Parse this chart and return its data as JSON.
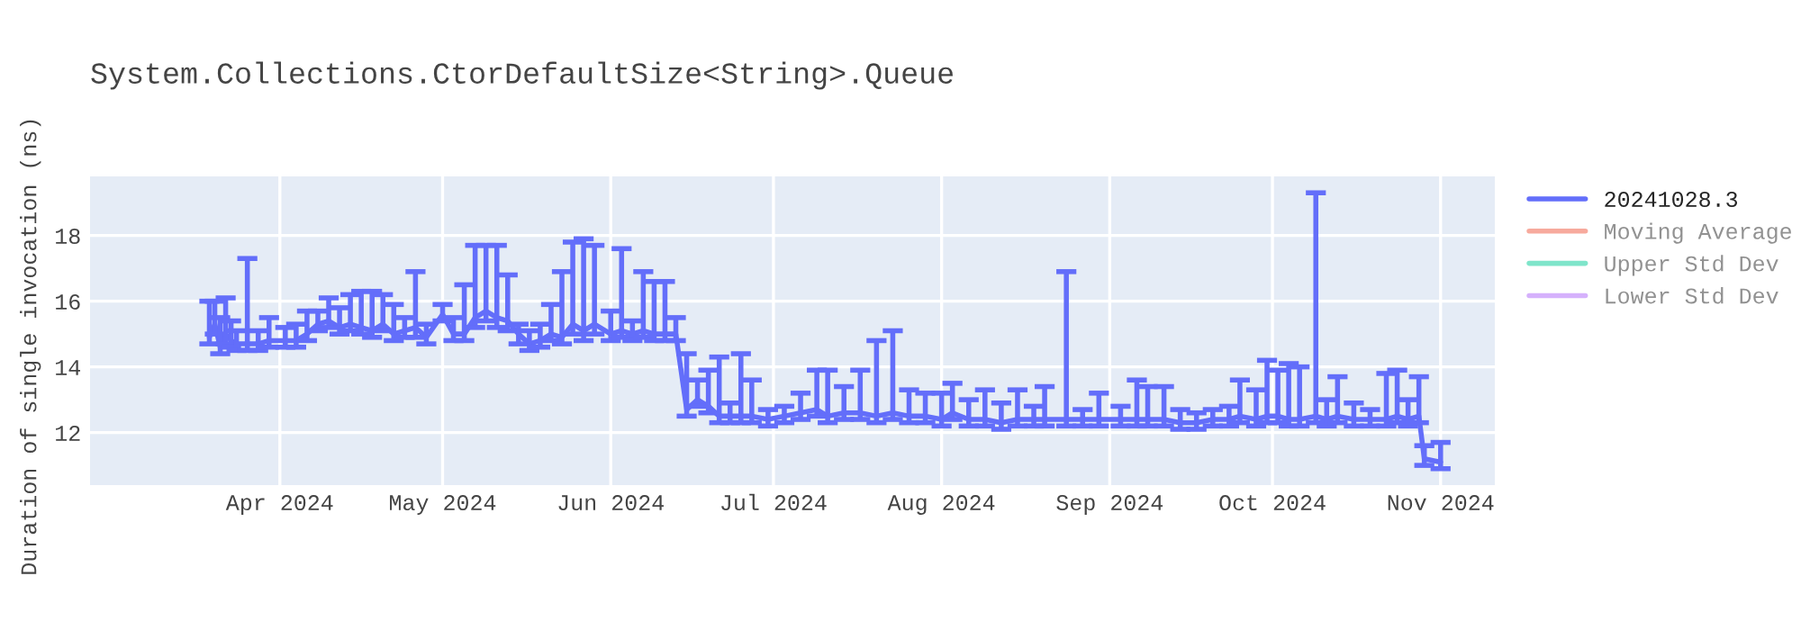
{
  "chart_data": {
    "type": "line",
    "title": "System.Collections.CtorDefaultSize<String>.Queue",
    "ylabel": "Duration of single invocation (ns)",
    "x": [
      "2024-03-19",
      "2024-03-20",
      "2024-03-21",
      "2024-03-22",
      "2024-03-23",
      "2024-03-24",
      "2024-03-26",
      "2024-03-28",
      "2024-03-30",
      "2024-04-02",
      "2024-04-04",
      "2024-04-06",
      "2024-04-08",
      "2024-04-10",
      "2024-04-12",
      "2024-04-14",
      "2024-04-16",
      "2024-04-18",
      "2024-04-20",
      "2024-04-22",
      "2024-04-24",
      "2024-04-26",
      "2024-04-28",
      "2024-05-01",
      "2024-05-03",
      "2024-05-05",
      "2024-05-07",
      "2024-05-09",
      "2024-05-11",
      "2024-05-13",
      "2024-05-15",
      "2024-05-17",
      "2024-05-19",
      "2024-05-21",
      "2024-05-23",
      "2024-05-25",
      "2024-05-27",
      "2024-05-29",
      "2024-06-01",
      "2024-06-03",
      "2024-06-05",
      "2024-06-07",
      "2024-06-09",
      "2024-06-11",
      "2024-06-13",
      "2024-06-15",
      "2024-06-17",
      "2024-06-19",
      "2024-06-21",
      "2024-06-23",
      "2024-06-25",
      "2024-06-27",
      "2024-06-30",
      "2024-07-03",
      "2024-07-06",
      "2024-07-09",
      "2024-07-11",
      "2024-07-14",
      "2024-07-17",
      "2024-07-20",
      "2024-07-23",
      "2024-07-26",
      "2024-07-29",
      "2024-08-01",
      "2024-08-03",
      "2024-08-06",
      "2024-08-09",
      "2024-08-12",
      "2024-08-15",
      "2024-08-18",
      "2024-08-20",
      "2024-08-24",
      "2024-08-27",
      "2024-08-30",
      "2024-09-03",
      "2024-09-06",
      "2024-09-08",
      "2024-09-11",
      "2024-09-14",
      "2024-09-17",
      "2024-09-20",
      "2024-09-23",
      "2024-09-25",
      "2024-09-28",
      "2024-09-30",
      "2024-10-02",
      "2024-10-04",
      "2024-10-06",
      "2024-10-09",
      "2024-10-11",
      "2024-10-13",
      "2024-10-16",
      "2024-10-19",
      "2024-10-22",
      "2024-10-24",
      "2024-10-26",
      "2024-10-28",
      "2024-10-29",
      "2024-11-01"
    ],
    "series": [
      {
        "name": "20241028.3",
        "color": "#636efa",
        "values": [
          14.9,
          15.3,
          14.6,
          15.0,
          14.8,
          14.7,
          14.7,
          14.7,
          14.8,
          14.8,
          14.8,
          15.0,
          15.3,
          15.4,
          15.2,
          15.3,
          15.2,
          15.1,
          15.3,
          15.0,
          15.1,
          15.2,
          14.9,
          15.6,
          15.0,
          15.0,
          15.5,
          15.7,
          15.5,
          15.4,
          15.0,
          14.7,
          14.8,
          15.0,
          14.9,
          15.3,
          15.1,
          15.3,
          15.0,
          15.1,
          15.0,
          15.1,
          15.0,
          15.0,
          15.0,
          12.7,
          13.0,
          12.8,
          12.5,
          12.5,
          12.5,
          12.5,
          12.4,
          12.5,
          12.6,
          12.7,
          12.5,
          12.6,
          12.6,
          12.5,
          12.6,
          12.5,
          12.5,
          12.4,
          12.6,
          12.4,
          12.4,
          12.3,
          12.4,
          12.4,
          12.4,
          12.4,
          12.4,
          12.4,
          12.4,
          12.4,
          12.4,
          12.4,
          12.3,
          12.3,
          12.4,
          12.4,
          12.5,
          12.4,
          12.5,
          12.5,
          12.4,
          12.4,
          12.5,
          12.4,
          12.5,
          12.4,
          12.4,
          12.4,
          12.5,
          12.4,
          12.5,
          11.2,
          11.1
        ],
        "errors": [
          [
            14.7,
            16.0
          ],
          [
            15.0,
            16.0
          ],
          [
            14.4,
            15.5
          ],
          [
            14.7,
            16.1
          ],
          [
            14.6,
            15.4
          ],
          [
            14.5,
            15.1
          ],
          [
            14.5,
            17.3
          ],
          [
            14.5,
            15.1
          ],
          [
            14.6,
            15.5
          ],
          [
            14.6,
            15.2
          ],
          [
            14.6,
            15.3
          ],
          [
            14.8,
            15.7
          ],
          [
            15.1,
            15.7
          ],
          [
            15.2,
            16.1
          ],
          [
            15.0,
            15.8
          ],
          [
            15.1,
            16.2
          ],
          [
            15.0,
            16.3
          ],
          [
            14.9,
            16.3
          ],
          [
            15.1,
            16.2
          ],
          [
            14.8,
            15.9
          ],
          [
            14.9,
            15.5
          ],
          [
            14.9,
            16.9
          ],
          [
            14.7,
            15.3
          ],
          [
            15.4,
            15.9
          ],
          [
            14.8,
            15.5
          ],
          [
            14.8,
            16.5
          ],
          [
            15.2,
            17.7
          ],
          [
            15.4,
            17.7
          ],
          [
            15.2,
            17.7
          ],
          [
            15.1,
            16.8
          ],
          [
            14.7,
            15.3
          ],
          [
            14.5,
            15.1
          ],
          [
            14.6,
            15.3
          ],
          [
            14.8,
            15.9
          ],
          [
            14.7,
            16.9
          ],
          [
            15.0,
            17.8
          ],
          [
            14.8,
            17.9
          ],
          [
            15.0,
            17.7
          ],
          [
            14.8,
            15.7
          ],
          [
            14.9,
            17.6
          ],
          [
            14.8,
            15.4
          ],
          [
            14.9,
            16.9
          ],
          [
            14.8,
            16.6
          ],
          [
            14.8,
            16.6
          ],
          [
            14.8,
            15.5
          ],
          [
            12.5,
            14.4
          ],
          [
            12.8,
            13.6
          ],
          [
            12.6,
            13.9
          ],
          [
            12.3,
            14.3
          ],
          [
            12.3,
            12.9
          ],
          [
            12.3,
            14.4
          ],
          [
            12.3,
            13.6
          ],
          [
            12.2,
            12.7
          ],
          [
            12.3,
            12.8
          ],
          [
            12.4,
            13.2
          ],
          [
            12.5,
            13.9
          ],
          [
            12.3,
            13.9
          ],
          [
            12.4,
            13.4
          ],
          [
            12.4,
            13.9
          ],
          [
            12.3,
            14.8
          ],
          [
            12.4,
            15.1
          ],
          [
            12.3,
            13.3
          ],
          [
            12.3,
            13.2
          ],
          [
            12.2,
            13.2
          ],
          [
            12.4,
            13.5
          ],
          [
            12.2,
            13.0
          ],
          [
            12.2,
            13.3
          ],
          [
            12.1,
            12.9
          ],
          [
            12.2,
            13.3
          ],
          [
            12.2,
            12.8
          ],
          [
            12.2,
            13.4
          ],
          [
            12.2,
            16.9
          ],
          [
            12.2,
            12.7
          ],
          [
            12.2,
            13.2
          ],
          [
            12.2,
            12.8
          ],
          [
            12.2,
            13.6
          ],
          [
            12.2,
            13.4
          ],
          [
            12.2,
            13.4
          ],
          [
            12.1,
            12.7
          ],
          [
            12.1,
            12.6
          ],
          [
            12.2,
            12.7
          ],
          [
            12.2,
            12.8
          ],
          [
            12.3,
            13.6
          ],
          [
            12.2,
            13.3
          ],
          [
            12.3,
            14.2
          ],
          [
            12.3,
            13.9
          ],
          [
            12.2,
            14.1
          ],
          [
            12.2,
            14.0
          ],
          [
            12.3,
            19.3
          ],
          [
            12.2,
            13.0
          ],
          [
            12.3,
            13.7
          ],
          [
            12.2,
            12.9
          ],
          [
            12.2,
            12.7
          ],
          [
            12.2,
            13.8
          ],
          [
            12.3,
            13.9
          ],
          [
            12.2,
            13.0
          ],
          [
            12.3,
            13.7
          ],
          [
            11.0,
            11.6
          ],
          [
            10.9,
            11.7
          ]
        ]
      },
      {
        "name": "Moving Average",
        "color": "#ef553b",
        "values": [
          null,
          null,
          null,
          null,
          null,
          null,
          null,
          null,
          null,
          null,
          null,
          null,
          null,
          null,
          null,
          null,
          null,
          null,
          null,
          null,
          null,
          null,
          null,
          null,
          null,
          null,
          null,
          null,
          null,
          null,
          null,
          null,
          null,
          null,
          null,
          null,
          null,
          null,
          null,
          null,
          null,
          null,
          null,
          null,
          null,
          null,
          null,
          null,
          null,
          null,
          null,
          null,
          null,
          null,
          null,
          null,
          null,
          null,
          null,
          null,
          null,
          null,
          null,
          null,
          null,
          null,
          null,
          null,
          null,
          null,
          null,
          null,
          null,
          null,
          null,
          null,
          null,
          null,
          null,
          null,
          null,
          null,
          null,
          null,
          null,
          null,
          null,
          null,
          null,
          null,
          null,
          null,
          null,
          null,
          null,
          null,
          null,
          null,
          null
        ]
      },
      {
        "name": "Upper Std Dev",
        "color": "#00cc96",
        "values": [
          null,
          null,
          null,
          null,
          null,
          null,
          null,
          null,
          null,
          null,
          null,
          null,
          null,
          null,
          null,
          null,
          null,
          null,
          null,
          null,
          null,
          null,
          null,
          null,
          null,
          null,
          null,
          null,
          null,
          null,
          null,
          null,
          null,
          null,
          null,
          null,
          null,
          null,
          null,
          null,
          null,
          null,
          null,
          null,
          null,
          null,
          null,
          null,
          null,
          null,
          null,
          null,
          null,
          null,
          null,
          null,
          null,
          null,
          null,
          null,
          null,
          null,
          null,
          null,
          null,
          null,
          null,
          null,
          null,
          null,
          null,
          null,
          null,
          null,
          null,
          null,
          null,
          null,
          null,
          null,
          null,
          null,
          null,
          null,
          null,
          null,
          null,
          null,
          null,
          null,
          null,
          null,
          null,
          null,
          null,
          null,
          null,
          null,
          null
        ]
      },
      {
        "name": "Lower Std Dev",
        "color": "#ab63fa",
        "values": [
          null,
          null,
          null,
          null,
          null,
          null,
          null,
          null,
          null,
          null,
          null,
          null,
          null,
          null,
          null,
          null,
          null,
          null,
          null,
          null,
          null,
          null,
          null,
          null,
          null,
          null,
          null,
          null,
          null,
          null,
          null,
          null,
          null,
          null,
          null,
          null,
          null,
          null,
          null,
          null,
          null,
          null,
          null,
          null,
          null,
          null,
          null,
          null,
          null,
          null,
          null,
          null,
          null,
          null,
          null,
          null,
          null,
          null,
          null,
          null,
          null,
          null,
          null,
          null,
          null,
          null,
          null,
          null,
          null,
          null,
          null,
          null,
          null,
          null,
          null,
          null,
          null,
          null,
          null,
          null,
          null,
          null,
          null,
          null,
          null,
          null,
          null,
          null,
          null,
          null,
          null,
          null,
          null,
          null,
          null,
          null,
          null,
          null,
          null
        ]
      }
    ],
    "xlim": [
      "2024-02-26",
      "2024-11-11"
    ],
    "xticks": [
      {
        "value": "2024-04-01",
        "label": "Apr 2024"
      },
      {
        "value": "2024-05-01",
        "label": "May 2024"
      },
      {
        "value": "2024-06-01",
        "label": "Jun 2024"
      },
      {
        "value": "2024-07-01",
        "label": "Jul 2024"
      },
      {
        "value": "2024-08-01",
        "label": "Aug 2024"
      },
      {
        "value": "2024-09-01",
        "label": "Sep 2024"
      },
      {
        "value": "2024-10-01",
        "label": "Oct 2024"
      },
      {
        "value": "2024-11-01",
        "label": "Nov 2024"
      }
    ],
    "ylim": [
      10.4,
      19.8
    ],
    "yticks": [
      12,
      14,
      16,
      18
    ],
    "grid": true,
    "legend": "top right",
    "marker": "none",
    "line_style": "solid"
  }
}
